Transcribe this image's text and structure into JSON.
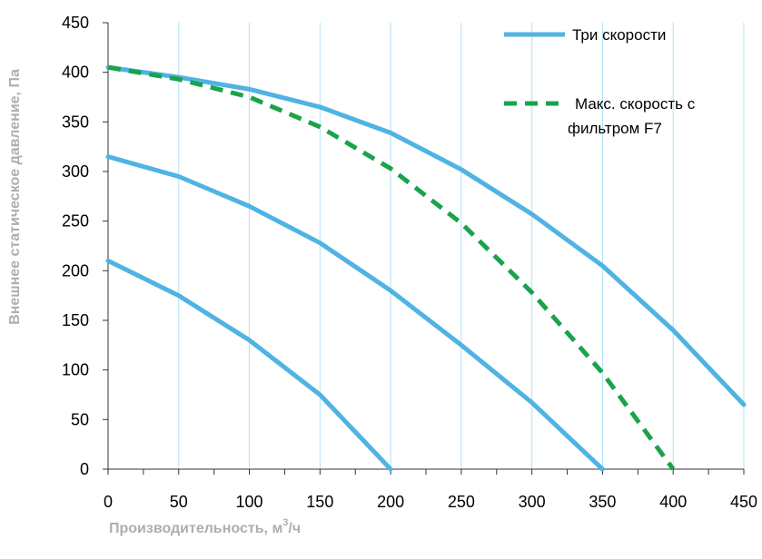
{
  "chart_data": {
    "type": "line",
    "title": "",
    "xlabel": "Производительность, м",
    "xlabel_sup": "3",
    "xlabel_unit": "/ч",
    "ylabel": "Внешнее статическое давление, Па",
    "xlim": [
      0,
      450
    ],
    "ylim": [
      0,
      450
    ],
    "x_ticks": [
      0,
      50,
      100,
      150,
      200,
      250,
      300,
      350,
      400,
      450
    ],
    "y_ticks": [
      0,
      50,
      100,
      150,
      200,
      250,
      300,
      350,
      400,
      450
    ],
    "grid": "vertical",
    "legend_position": "top-right",
    "legend": [
      {
        "label": "Три скорости",
        "color": "#4fb3e3",
        "style": "solid"
      },
      {
        "label": "Макс. скорость с фильтром F7",
        "line1": "Макс. скорость с",
        "line2": "фильтром F7",
        "color": "#1aa34a",
        "style": "dashed"
      }
    ],
    "series": [
      {
        "speed": "low",
        "color": "#4fb3e3",
        "style": "solid",
        "x": [
          0,
          50,
          100,
          150,
          200
        ],
        "y": [
          210,
          175,
          130,
          75,
          0
        ]
      },
      {
        "speed": "medium",
        "color": "#4fb3e3",
        "style": "solid",
        "x": [
          0,
          50,
          100,
          150,
          200,
          250,
          300,
          350
        ],
        "y": [
          315,
          295,
          265,
          228,
          180,
          125,
          67,
          0
        ]
      },
      {
        "speed": "high",
        "color": "#4fb3e3",
        "style": "solid",
        "x": [
          0,
          50,
          100,
          150,
          200,
          250,
          300,
          350,
          400,
          450
        ],
        "y": [
          405,
          395,
          383,
          365,
          339,
          302,
          257,
          205,
          140,
          65
        ]
      },
      {
        "speed": "max-f7",
        "color": "#1aa34a",
        "style": "dashed",
        "x": [
          0,
          50,
          100,
          150,
          200,
          250,
          300,
          350,
          400
        ],
        "y": [
          405,
          393,
          375,
          345,
          303,
          248,
          178,
          97,
          0
        ]
      }
    ]
  }
}
